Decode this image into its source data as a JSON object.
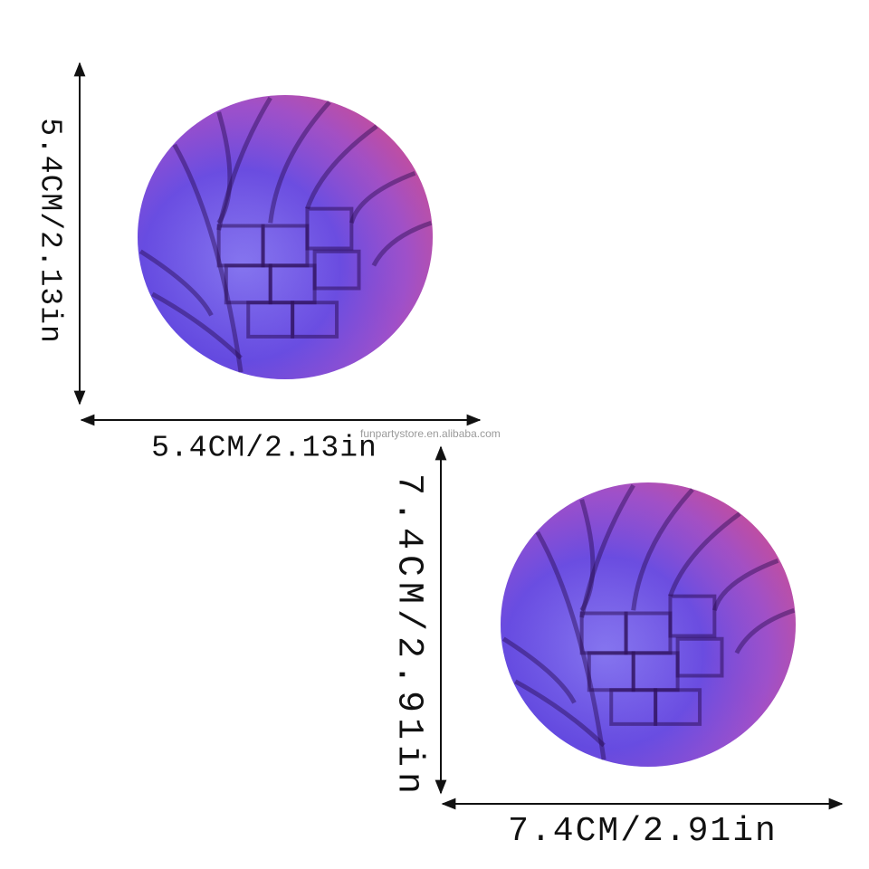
{
  "small_ball": {
    "height_label": "5.4CM/2.13in",
    "width_label": "5.4CM/2.13in"
  },
  "watermark": "funpartystore.en.alibaba.com",
  "large_ball": {
    "height_label": "7.4CM/2.91in",
    "width_label": "7.4CM/2.91in"
  }
}
